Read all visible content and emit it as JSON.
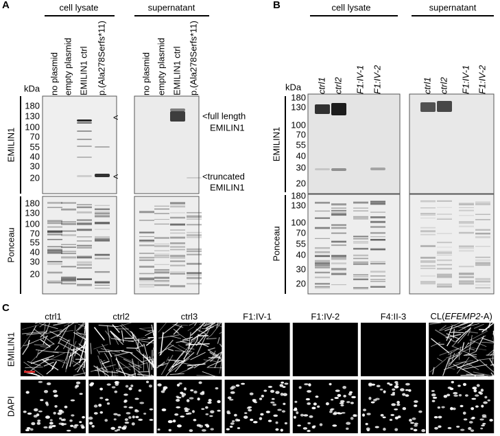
{
  "panel_a": {
    "letter": "A",
    "groups": [
      "cell lysate",
      "supernatant"
    ],
    "lanes": [
      "no plasmid",
      "empty plasmid",
      "EMILIN1 ctrl",
      "p.(Ala278Serfs*11)"
    ],
    "kda": "kDa",
    "row_labels": [
      "EMILIN1",
      "Ponceau"
    ],
    "markers": [
      "180",
      "130",
      "100",
      "70",
      "55",
      "40",
      "30",
      "20"
    ],
    "arrow": "<",
    "annotations": [
      "<full length",
      "EMILIN1",
      "<truncated",
      "EMILIN1"
    ]
  },
  "panel_b": {
    "letter": "B",
    "groups": [
      "cell lysate",
      "supernatant"
    ],
    "lanes": [
      {
        "label": "ctrl1",
        "color": "#2e2ea6"
      },
      {
        "label": "ctrl2",
        "color": "#2e2ea6"
      },
      {
        "label": "F1:IV-1",
        "color": "#d42a2a"
      },
      {
        "label": "F1:IV-2",
        "color": "#d42a2a"
      }
    ],
    "kda": "kDa",
    "row_labels": [
      "EMILIN1",
      "Ponceau"
    ],
    "markers": [
      "180",
      "130",
      "100",
      "70",
      "55",
      "40",
      "30",
      "20"
    ]
  },
  "panel_c": {
    "letter": "C",
    "columns": [
      {
        "label": "ctrl1",
        "color": "#2e2ea6"
      },
      {
        "label": "ctrl2",
        "color": "#2e2ea6"
      },
      {
        "label": "ctrl3",
        "color": "#2e2ea6"
      },
      {
        "label": "F1:IV-1",
        "color": "#d42a2a"
      },
      {
        "label": "F1:IV-2",
        "color": "#d42a2a"
      },
      {
        "label": "F4:II-3",
        "color": "#d42a2a"
      },
      {
        "prefix": "CL(",
        "italic": "EFEMP2",
        "suffix": "-A)",
        "color": "#888888"
      }
    ],
    "row_labels": [
      "EMILIN1",
      "DAPI"
    ]
  }
}
